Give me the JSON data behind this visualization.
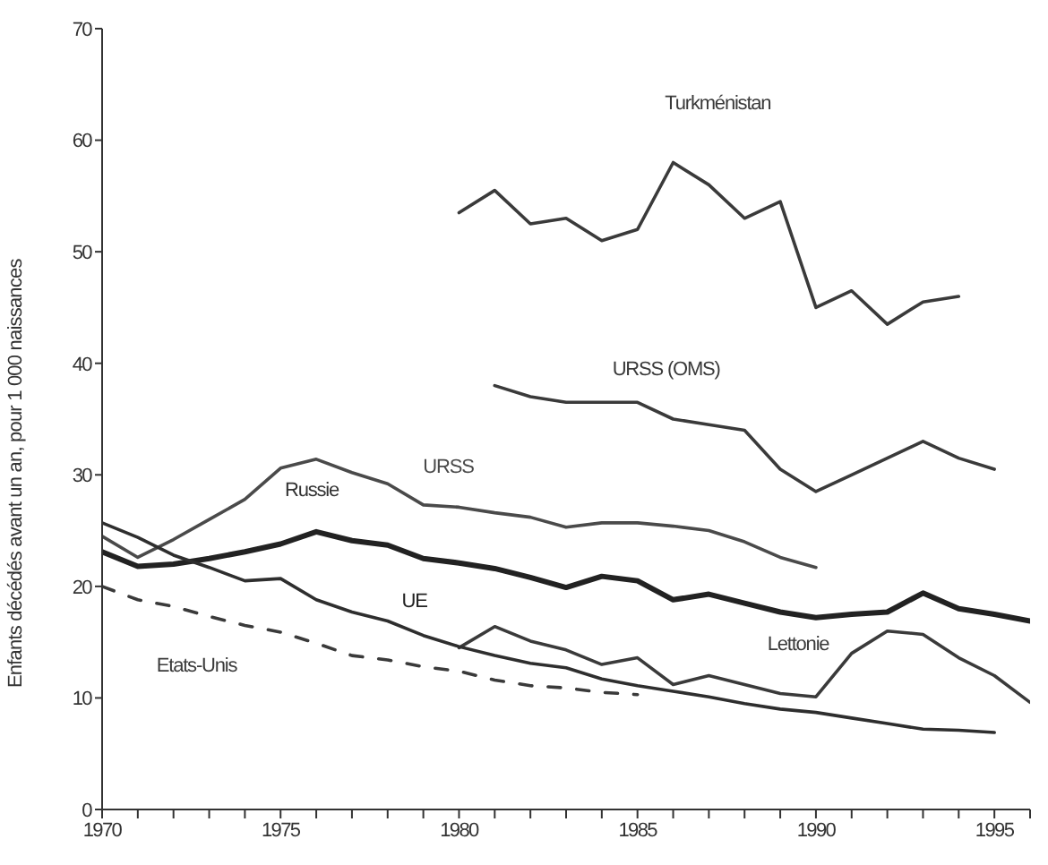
{
  "chart_data": {
    "type": "line",
    "ylabel": "Enfants décédés avant un an, pour 1 000 naissances",
    "annotations": [
      "Russie"
    ],
    "x": [
      1970,
      1971,
      1972,
      1973,
      1974,
      1975,
      1976,
      1977,
      1978,
      1979,
      1980,
      1981,
      1982,
      1983,
      1984,
      1985,
      1986,
      1987,
      1988,
      1989,
      1990,
      1991,
      1992,
      1993,
      1994,
      1995,
      1996
    ],
    "series": [
      {
        "name": "Turkménistan",
        "color": "#3a3a3a",
        "line_style": "solid",
        "values": [
          null,
          null,
          null,
          null,
          null,
          null,
          null,
          null,
          null,
          null,
          53.5,
          55.5,
          52.5,
          53,
          51,
          52,
          58,
          56,
          53,
          54.5,
          45,
          46.5,
          43.5,
          45.5,
          46,
          null,
          null
        ]
      },
      {
        "name": "URSS (OMS)",
        "color": "#3a3a3a",
        "line_style": "solid",
        "values": [
          null,
          null,
          null,
          null,
          null,
          null,
          null,
          null,
          null,
          null,
          null,
          38,
          37,
          36.5,
          36.5,
          36.5,
          35,
          34.5,
          34,
          30.5,
          28.5,
          30,
          31.5,
          33,
          31.5,
          30.5,
          null
        ]
      },
      {
        "name": "URSS",
        "color": "#4a4a4a",
        "line_style": "solid",
        "values": [
          24.5,
          22.6,
          24.2,
          26,
          27.8,
          30.6,
          31.4,
          30.2,
          29.2,
          27.3,
          27.1,
          26.6,
          26.2,
          25.3,
          25.7,
          25.7,
          25.4,
          25,
          24,
          22.6,
          21.7,
          null,
          null,
          null,
          null,
          null,
          null
        ]
      },
      {
        "name": "UE",
        "color": "#222222",
        "line_style": "solid",
        "values": [
          23.1,
          21.8,
          22,
          22.5,
          23.1,
          23.8,
          24.9,
          24.1,
          23.7,
          22.5,
          22.1,
          21.6,
          20.8,
          19.9,
          20.9,
          20.5,
          18.8,
          19.3,
          18.5,
          17.7,
          17.2,
          17.5,
          17.7,
          19.4,
          18,
          17.5,
          16.9
        ]
      },
      {
        "name": "Lettonie",
        "color": "#3a3a3a",
        "line_style": "solid",
        "values": [
          null,
          null,
          null,
          null,
          null,
          null,
          null,
          null,
          null,
          null,
          14.5,
          16.4,
          15.1,
          14.3,
          13,
          13.6,
          11.2,
          12,
          11.2,
          10.4,
          10.1,
          14,
          16,
          15.7,
          13.6,
          12,
          9.6
        ]
      },
      {
        "name": "Etats-Unis",
        "color": "#3a3a3a",
        "line_style": "dashed",
        "values": [
          20,
          18.8,
          18.2,
          17.3,
          16.5,
          15.9,
          14.9,
          13.8,
          13.4,
          12.8,
          12.4,
          11.6,
          11.1,
          10.9,
          10.5,
          10.3,
          null,
          null,
          null,
          null,
          null,
          null,
          null,
          null,
          null,
          null,
          null
        ]
      },
      {
        "color": "#2e2e2e",
        "line_style": "solid",
        "values": [
          25.7,
          24.4,
          22.8,
          21.7,
          20.5,
          20.7,
          18.8,
          17.7,
          16.9,
          15.6,
          14.6,
          13.8,
          13.1,
          12.7,
          11.7,
          11.1,
          10.6,
          10.1,
          9.5,
          9,
          8.7,
          8.2,
          7.7,
          7.2,
          7.1,
          6.9,
          null
        ]
      }
    ],
    "xlim": [
      1970,
      1996
    ],
    "xticks": [
      1970,
      {
        "value": 1971,
        "label": null
      },
      {
        "value": 1972,
        "label": null
      },
      {
        "value": 1973,
        "label": null
      },
      {
        "value": 1974,
        "label": null
      },
      1975,
      {
        "value": 1976,
        "label": null
      },
      {
        "value": 1977,
        "label": null
      },
      {
        "value": 1978,
        "label": null
      },
      {
        "value": 1979,
        "label": null
      },
      1980,
      {
        "value": 1981,
        "label": null
      },
      {
        "value": 1982,
        "label": null
      },
      {
        "value": 1983,
        "label": null
      },
      {
        "value": 1984,
        "label": null
      },
      1985,
      {
        "value": 1986,
        "label": null
      },
      {
        "value": 1987,
        "label": null
      },
      {
        "value": 1988,
        "label": null
      },
      {
        "value": 1989,
        "label": null
      },
      1990,
      {
        "value": 1991,
        "label": null
      },
      {
        "value": 1992,
        "label": null
      },
      {
        "value": 1993,
        "label": null
      },
      {
        "value": 1994,
        "label": null
      },
      1995,
      {
        "value": 1996,
        "label": null
      }
    ],
    "ylim": [
      0,
      70
    ],
    "yticks": [
      0,
      10,
      20,
      30,
      40,
      50,
      60,
      70
    ],
    "grid": false,
    "legend": false,
    "marker": "none"
  }
}
